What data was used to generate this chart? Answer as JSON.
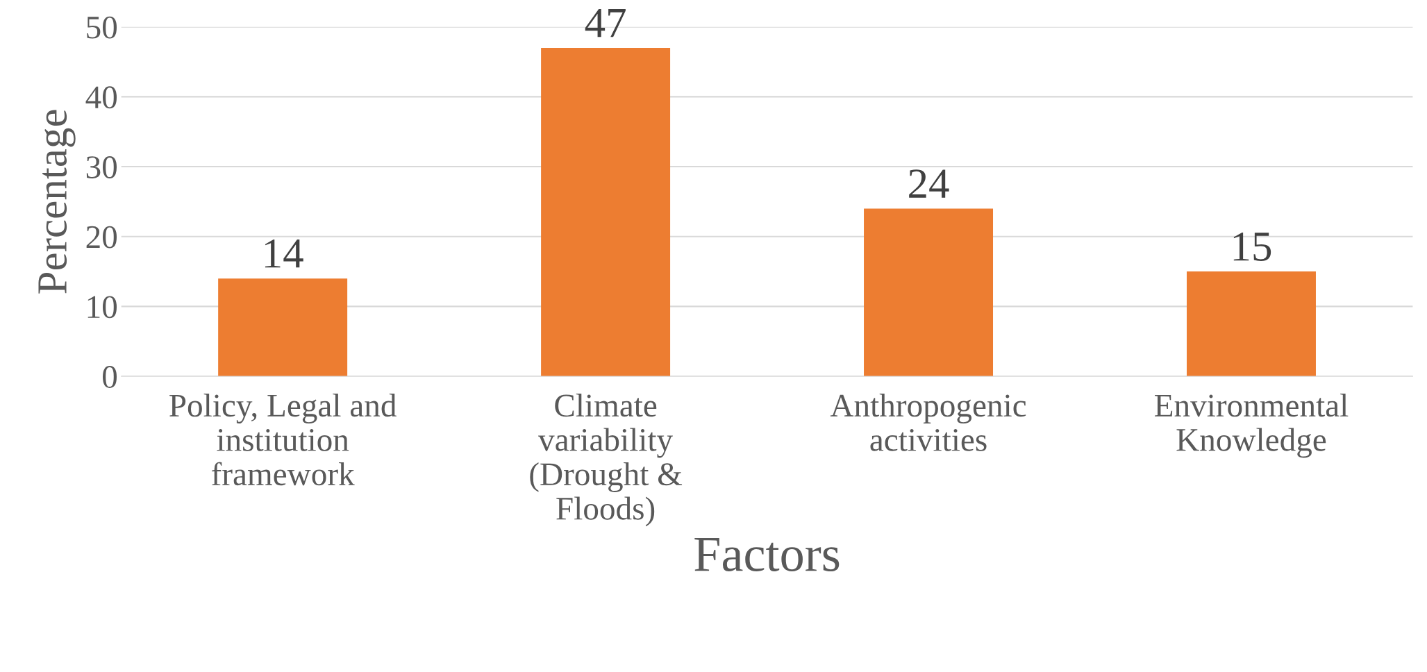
{
  "chart_data": {
    "type": "bar",
    "xlabel": "Factors",
    "ylabel": "Percentage",
    "categories": [
      "Policy, Legal and\ninstitution\nframework",
      "Climate\nvariability\n(Drought &\nFloods)",
      "Anthropogenic\nactivities",
      "Environmental\nKnowledge"
    ],
    "values": [
      14,
      47,
      24,
      15
    ],
    "color": "#ed7d31",
    "ylim": [
      0,
      50
    ],
    "yticks": [
      0,
      10,
      20,
      30,
      40,
      50
    ],
    "grid": "y",
    "data_labels": true
  }
}
